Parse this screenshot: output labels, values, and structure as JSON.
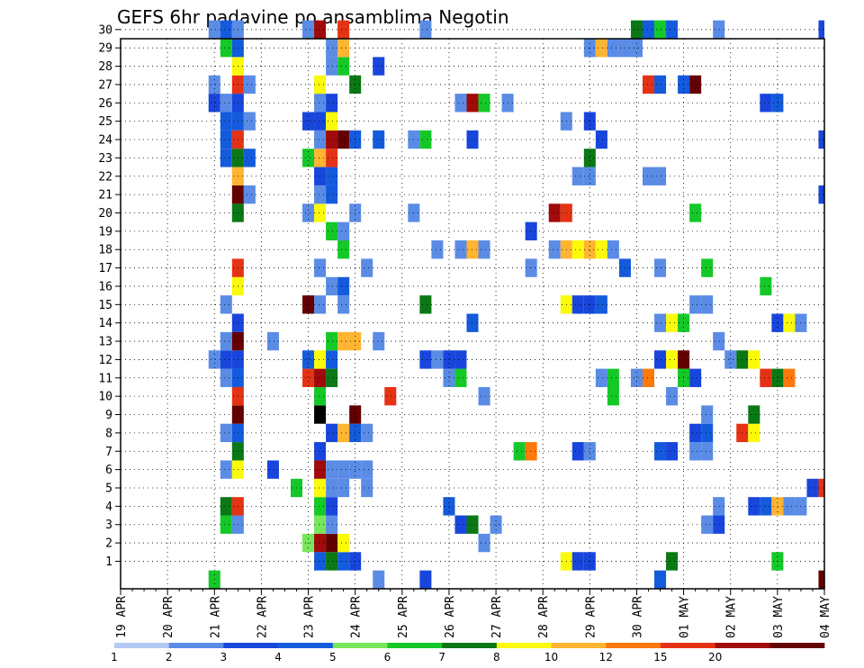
{
  "chart_data": {
    "type": "heatmap",
    "title": "GEFS 6hr padavine po ansamblima Negotin",
    "ylabel": "",
    "xlabel": "",
    "x_tick_labels": [
      "19 APR",
      "20 APR",
      "21 APR",
      "22 APR",
      "23 APR",
      "24 APR",
      "25 APR",
      "26 APR",
      "27 APR",
      "28 APR",
      "29 APR",
      "30 APR",
      "01 MAY",
      "02 MAY",
      "03 MAY",
      "04 MAY"
    ],
    "y_tick_labels": [
      "1",
      "2",
      "3",
      "4",
      "5",
      "6",
      "7",
      "8",
      "9",
      "10",
      "11",
      "12",
      "13",
      "14",
      "15",
      "16",
      "17",
      "18",
      "19",
      "20",
      "21",
      "22",
      "23",
      "24",
      "25",
      "26",
      "27",
      "28",
      "29",
      "30"
    ],
    "time_steps_per_day": 4,
    "num_time_steps": 61,
    "members": 31,
    "grid": true,
    "colorbar": {
      "levels": [
        "1",
        "2",
        "3",
        "4",
        "5",
        "6",
        "7",
        "8",
        "10",
        "12",
        "15",
        "20"
      ],
      "colors": [
        "#b4c8f4",
        "#5a8ce6",
        "#1846dc",
        "#145adc",
        "#78e65a",
        "#14c828",
        "#0a7814",
        "#fafa0a",
        "#ffb432",
        "#ff780a",
        "#e63214",
        "#a00a0a",
        "#640000"
      ]
    },
    "cells": [
      [
        0,
        8,
        5
      ],
      [
        0,
        22,
        1
      ],
      [
        0,
        26,
        2
      ],
      [
        0,
        46,
        3
      ],
      [
        0,
        60,
        12
      ],
      [
        1,
        17,
        3
      ],
      [
        1,
        18,
        6
      ],
      [
        1,
        19,
        3
      ],
      [
        1,
        20,
        2
      ],
      [
        1,
        38,
        7
      ],
      [
        1,
        39,
        2
      ],
      [
        1,
        40,
        2
      ],
      [
        1,
        47,
        6
      ],
      [
        1,
        56,
        5
      ],
      [
        2,
        16,
        4
      ],
      [
        2,
        17,
        11
      ],
      [
        2,
        18,
        12
      ],
      [
        2,
        19,
        7
      ],
      [
        2,
        31,
        1
      ],
      [
        3,
        9,
        5
      ],
      [
        3,
        10,
        1
      ],
      [
        3,
        17,
        4
      ],
      [
        3,
        18,
        1
      ],
      [
        3,
        29,
        2
      ],
      [
        3,
        30,
        6
      ],
      [
        3,
        32,
        1
      ],
      [
        3,
        50,
        1
      ],
      [
        3,
        51,
        2
      ],
      [
        4,
        9,
        6
      ],
      [
        4,
        10,
        10
      ],
      [
        4,
        17,
        5
      ],
      [
        4,
        18,
        2
      ],
      [
        4,
        28,
        3
      ],
      [
        4,
        51,
        1
      ],
      [
        4,
        54,
        2
      ],
      [
        4,
        55,
        3
      ],
      [
        4,
        56,
        8
      ],
      [
        4,
        57,
        1
      ],
      [
        4,
        58,
        1
      ],
      [
        5,
        15,
        5
      ],
      [
        5,
        17,
        7
      ],
      [
        5,
        18,
        1
      ],
      [
        5,
        19,
        1
      ],
      [
        5,
        21,
        1
      ],
      [
        5,
        59,
        2
      ],
      [
        5,
        60,
        10
      ],
      [
        6,
        9,
        1
      ],
      [
        6,
        10,
        7
      ],
      [
        6,
        13,
        2
      ],
      [
        6,
        17,
        11
      ],
      [
        6,
        18,
        1
      ],
      [
        6,
        19,
        1
      ],
      [
        6,
        20,
        1
      ],
      [
        6,
        21,
        1
      ],
      [
        7,
        10,
        6
      ],
      [
        7,
        17,
        2
      ],
      [
        7,
        34,
        5
      ],
      [
        7,
        35,
        9
      ],
      [
        7,
        39,
        2
      ],
      [
        7,
        40,
        1
      ],
      [
        7,
        46,
        3
      ],
      [
        7,
        47,
        2
      ],
      [
        7,
        49,
        1
      ],
      [
        7,
        50,
        1
      ],
      [
        8,
        9,
        1
      ],
      [
        8,
        10,
        3
      ],
      [
        8,
        18,
        2
      ],
      [
        8,
        19,
        8
      ],
      [
        8,
        20,
        3
      ],
      [
        8,
        21,
        1
      ],
      [
        8,
        49,
        2
      ],
      [
        8,
        50,
        3
      ],
      [
        8,
        53,
        10
      ],
      [
        8,
        54,
        7
      ],
      [
        9,
        10,
        12
      ],
      [
        9,
        17,
        13
      ],
      [
        9,
        20,
        12
      ],
      [
        9,
        50,
        1
      ],
      [
        9,
        54,
        6
      ],
      [
        10,
        10,
        10
      ],
      [
        10,
        17,
        5
      ],
      [
        10,
        23,
        10
      ],
      [
        10,
        31,
        1
      ],
      [
        10,
        42,
        5
      ],
      [
        10,
        47,
        1
      ],
      [
        11,
        9,
        1
      ],
      [
        11,
        10,
        3
      ],
      [
        11,
        16,
        10
      ],
      [
        11,
        17,
        11
      ],
      [
        11,
        18,
        6
      ],
      [
        11,
        28,
        1
      ],
      [
        11,
        29,
        5
      ],
      [
        11,
        41,
        1
      ],
      [
        11,
        42,
        5
      ],
      [
        11,
        44,
        1
      ],
      [
        11,
        45,
        9
      ],
      [
        11,
        48,
        5
      ],
      [
        11,
        49,
        2
      ],
      [
        11,
        55,
        10
      ],
      [
        11,
        56,
        6
      ],
      [
        11,
        57,
        9
      ],
      [
        12,
        8,
        1
      ],
      [
        12,
        9,
        2
      ],
      [
        12,
        10,
        2
      ],
      [
        12,
        16,
        3
      ],
      [
        12,
        17,
        7
      ],
      [
        12,
        18,
        3
      ],
      [
        12,
        26,
        2
      ],
      [
        12,
        27,
        1
      ],
      [
        12,
        28,
        2
      ],
      [
        12,
        29,
        2
      ],
      [
        12,
        46,
        2
      ],
      [
        12,
        47,
        7
      ],
      [
        12,
        48,
        12
      ],
      [
        12,
        52,
        1
      ],
      [
        12,
        53,
        6
      ],
      [
        12,
        54,
        7
      ],
      [
        13,
        9,
        1
      ],
      [
        13,
        10,
        12
      ],
      [
        13,
        13,
        1
      ],
      [
        13,
        18,
        5
      ],
      [
        13,
        19,
        8
      ],
      [
        13,
        20,
        8
      ],
      [
        13,
        22,
        1
      ],
      [
        13,
        51,
        1
      ],
      [
        14,
        10,
        2
      ],
      [
        14,
        30,
        3
      ],
      [
        14,
        46,
        1
      ],
      [
        14,
        47,
        7
      ],
      [
        14,
        48,
        5
      ],
      [
        14,
        56,
        2
      ],
      [
        14,
        57,
        7
      ],
      [
        14,
        58,
        1
      ],
      [
        15,
        9,
        1
      ],
      [
        15,
        16,
        12
      ],
      [
        15,
        17,
        1
      ],
      [
        15,
        19,
        1
      ],
      [
        15,
        26,
        6
      ],
      [
        15,
        38,
        7
      ],
      [
        15,
        39,
        2
      ],
      [
        15,
        40,
        2
      ],
      [
        15,
        41,
        3
      ],
      [
        15,
        49,
        1
      ],
      [
        15,
        50,
        1
      ],
      [
        16,
        10,
        7
      ],
      [
        16,
        18,
        1
      ],
      [
        16,
        19,
        3
      ],
      [
        16,
        55,
        5
      ],
      [
        17,
        10,
        10
      ],
      [
        17,
        17,
        1
      ],
      [
        17,
        21,
        1
      ],
      [
        17,
        35,
        1
      ],
      [
        17,
        43,
        3
      ],
      [
        17,
        46,
        1
      ],
      [
        17,
        50,
        5
      ],
      [
        18,
        19,
        5
      ],
      [
        18,
        27,
        1
      ],
      [
        18,
        29,
        1
      ],
      [
        18,
        30,
        8
      ],
      [
        18,
        31,
        1
      ],
      [
        18,
        37,
        1
      ],
      [
        18,
        38,
        8
      ],
      [
        18,
        39,
        7
      ],
      [
        18,
        40,
        8
      ],
      [
        18,
        41,
        7
      ],
      [
        18,
        42,
        1
      ],
      [
        19,
        18,
        5
      ],
      [
        19,
        19,
        1
      ],
      [
        19,
        35,
        2
      ],
      [
        20,
        10,
        6
      ],
      [
        20,
        16,
        1
      ],
      [
        20,
        17,
        7
      ],
      [
        20,
        20,
        1
      ],
      [
        20,
        25,
        1
      ],
      [
        20,
        37,
        11
      ],
      [
        20,
        38,
        10
      ],
      [
        20,
        49,
        5
      ],
      [
        21,
        10,
        12
      ],
      [
        21,
        11,
        1
      ],
      [
        21,
        17,
        1
      ],
      [
        21,
        18,
        3
      ],
      [
        21,
        60,
        2
      ],
      [
        22,
        10,
        8
      ],
      [
        22,
        17,
        2
      ],
      [
        22,
        18,
        3
      ],
      [
        22,
        39,
        1
      ],
      [
        22,
        40,
        1
      ],
      [
        22,
        45,
        1
      ],
      [
        22,
        46,
        1
      ],
      [
        23,
        9,
        3
      ],
      [
        23,
        10,
        6
      ],
      [
        23,
        11,
        3
      ],
      [
        23,
        16,
        5
      ],
      [
        23,
        17,
        8
      ],
      [
        23,
        18,
        10
      ],
      [
        23,
        40,
        6
      ],
      [
        24,
        9,
        3
      ],
      [
        24,
        10,
        10
      ],
      [
        24,
        17,
        1
      ],
      [
        24,
        18,
        11
      ],
      [
        24,
        19,
        12
      ],
      [
        24,
        20,
        3
      ],
      [
        24,
        22,
        3
      ],
      [
        24,
        25,
        1
      ],
      [
        24,
        26,
        5
      ],
      [
        24,
        30,
        2
      ],
      [
        24,
        41,
        2
      ],
      [
        24,
        60,
        2
      ],
      [
        25,
        9,
        3
      ],
      [
        25,
        10,
        3
      ],
      [
        25,
        11,
        1
      ],
      [
        25,
        16,
        2
      ],
      [
        25,
        17,
        2
      ],
      [
        25,
        18,
        7
      ],
      [
        25,
        38,
        1
      ],
      [
        25,
        40,
        2
      ],
      [
        26,
        8,
        2
      ],
      [
        26,
        9,
        1
      ],
      [
        26,
        10,
        2
      ],
      [
        26,
        17,
        1
      ],
      [
        26,
        18,
        2
      ],
      [
        26,
        29,
        1
      ],
      [
        26,
        30,
        11
      ],
      [
        26,
        31,
        5
      ],
      [
        26,
        33,
        1
      ],
      [
        26,
        55,
        2
      ],
      [
        26,
        56,
        3
      ],
      [
        27,
        8,
        1
      ],
      [
        27,
        10,
        10
      ],
      [
        27,
        11,
        1
      ],
      [
        27,
        17,
        7
      ],
      [
        27,
        20,
        6
      ],
      [
        27,
        45,
        10
      ],
      [
        27,
        46,
        3
      ],
      [
        27,
        48,
        3
      ],
      [
        27,
        49,
        12
      ],
      [
        28,
        10,
        7
      ],
      [
        28,
        18,
        1
      ],
      [
        28,
        19,
        5
      ],
      [
        28,
        22,
        2
      ],
      [
        29,
        9,
        5
      ],
      [
        29,
        10,
        3
      ],
      [
        29,
        18,
        1
      ],
      [
        29,
        19,
        8
      ],
      [
        29,
        40,
        1
      ],
      [
        29,
        41,
        8
      ],
      [
        29,
        42,
        1
      ],
      [
        29,
        43,
        1
      ],
      [
        29,
        44,
        1
      ],
      [
        30,
        8,
        1
      ],
      [
        30,
        9,
        3
      ],
      [
        30,
        10,
        1
      ],
      [
        30,
        16,
        1
      ],
      [
        30,
        17,
        11
      ],
      [
        30,
        19,
        10
      ],
      [
        30,
        26,
        1
      ],
      [
        30,
        44,
        6
      ],
      [
        30,
        45,
        3
      ],
      [
        30,
        46,
        5
      ],
      [
        30,
        47,
        3
      ],
      [
        30,
        51,
        1
      ],
      [
        30,
        60,
        2
      ]
    ]
  }
}
